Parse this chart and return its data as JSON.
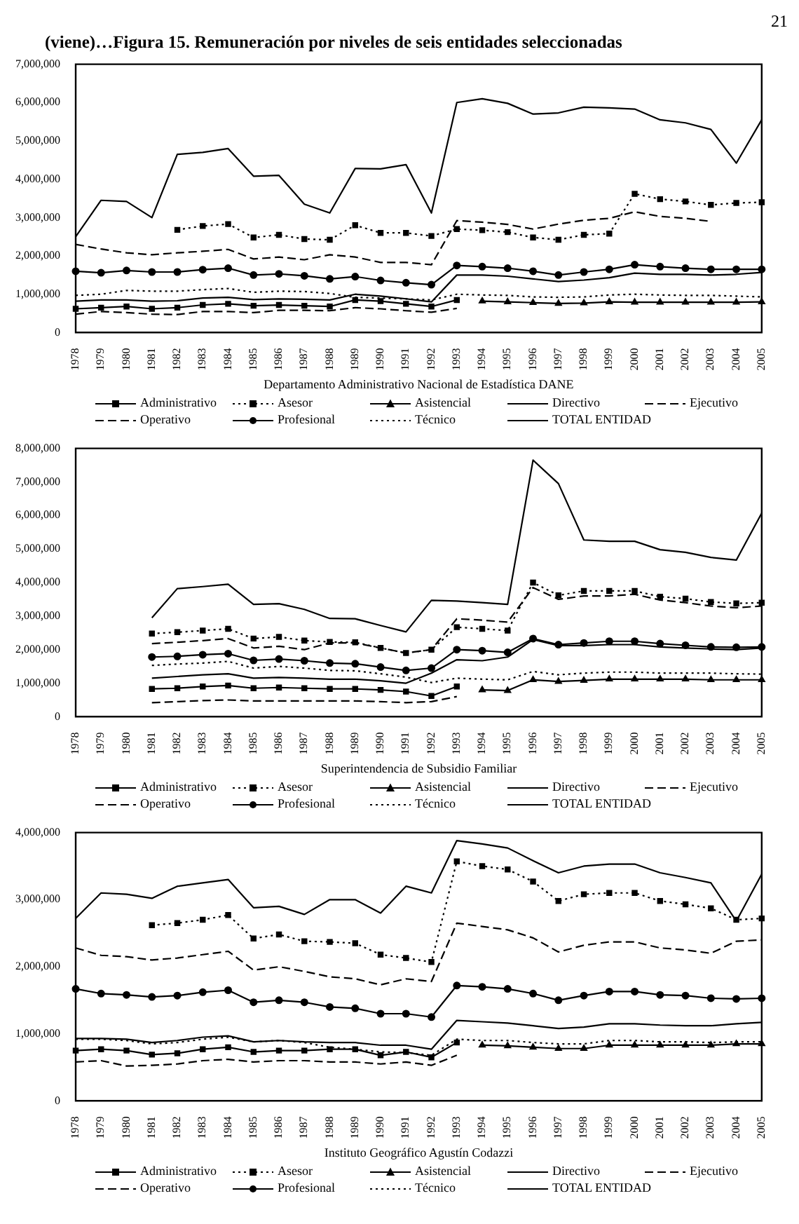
{
  "chart_data": [
    {
      "type": "line",
      "title": "(viene)…Figura 15. Remuneración por niveles de seis entidades seleccionadas",
      "annotations": [
        "21"
      ],
      "xlabel": "Departamento Administrativo Nacional de Estadística DANE",
      "legend": "bottom",
      "grid": false,
      "categories": [
        "1978",
        "1979",
        "1980",
        "1981",
        "1982",
        "1983",
        "1984",
        "1985",
        "1986",
        "1987",
        "1988",
        "1989",
        "1990",
        "1991",
        "1992",
        "1993",
        "1994",
        "1995",
        "1996",
        "1997",
        "1998",
        "1999",
        "2000",
        "2001",
        "2002",
        "2003",
        "2004",
        "2005"
      ],
      "ylim": [
        0,
        7000000
      ],
      "yticks": [
        {
          "value": 0,
          "label": "0"
        },
        {
          "value": 1000000,
          "label": "1,000,000"
        },
        {
          "value": 2000000,
          "label": "2,000,000"
        },
        {
          "value": 3000000,
          "label": "3,000,000"
        },
        {
          "value": 4000000,
          "label": "4,000,000"
        },
        {
          "value": 5000000,
          "label": "5,000,000"
        },
        {
          "value": 6000000,
          "label": "6,000,000"
        },
        {
          "value": 7000000,
          "label": "7,000,000"
        }
      ],
      "series": [
        {
          "name": "Administrativo",
          "color": "#000000",
          "line_style": "solid",
          "marker": "square",
          "values": [
            620000,
            650000,
            680000,
            620000,
            650000,
            720000,
            750000,
            700000,
            720000,
            700000,
            680000,
            850000,
            820000,
            750000,
            680000,
            850000,
            null,
            null,
            null,
            null,
            null,
            null,
            null,
            null,
            null,
            null,
            null,
            null
          ]
        },
        {
          "name": "Asesor",
          "color": "#000000",
          "line_style": "dotted",
          "marker": "square",
          "values": [
            null,
            null,
            null,
            null,
            2680000,
            2780000,
            2830000,
            2480000,
            2550000,
            2440000,
            2420000,
            2800000,
            2600000,
            2600000,
            2520000,
            2700000,
            2670000,
            2620000,
            2480000,
            2420000,
            2550000,
            2580000,
            3620000,
            3480000,
            3420000,
            3330000,
            3380000,
            3400000
          ]
        },
        {
          "name": "Asistencial",
          "color": "#000000",
          "line_style": "solid",
          "marker": "triangle",
          "values": [
            null,
            null,
            null,
            null,
            null,
            null,
            null,
            null,
            null,
            null,
            null,
            null,
            null,
            null,
            null,
            null,
            820000,
            800000,
            780000,
            760000,
            770000,
            800000,
            790000,
            790000,
            790000,
            790000,
            790000,
            800000
          ]
        },
        {
          "name": "Directivo",
          "color": "#000000",
          "line_style": "solid",
          "marker": "none",
          "values": [
            820000,
            850000,
            850000,
            820000,
            830000,
            900000,
            920000,
            860000,
            880000,
            870000,
            850000,
            1000000,
            950000,
            880000,
            800000,
            1500000,
            1500000,
            1470000,
            1400000,
            1330000,
            1370000,
            1430000,
            1550000,
            1520000,
            1520000,
            1500000,
            1520000,
            1570000
          ]
        },
        {
          "name": "Ejecutivo",
          "color": "#000000",
          "line_style": "dashed",
          "marker": "none",
          "values": [
            2300000,
            2180000,
            2080000,
            2030000,
            2080000,
            2120000,
            2170000,
            1920000,
            1970000,
            1900000,
            2030000,
            1970000,
            1830000,
            1830000,
            1770000,
            2920000,
            2880000,
            2820000,
            2700000,
            2830000,
            2930000,
            2980000,
            3150000,
            3030000,
            2980000,
            2900000,
            null,
            null
          ]
        },
        {
          "name": "Operativo",
          "color": "#000000",
          "line_style": "dashed",
          "marker": "none",
          "values": [
            480000,
            550000,
            520000,
            480000,
            470000,
            550000,
            550000,
            520000,
            580000,
            580000,
            570000,
            650000,
            620000,
            570000,
            530000,
            630000,
            null,
            null,
            null,
            null,
            null,
            null,
            null,
            null,
            null,
            null,
            null,
            null
          ]
        },
        {
          "name": "Profesional",
          "color": "#000000",
          "line_style": "solid",
          "marker": "circle",
          "values": [
            1600000,
            1560000,
            1620000,
            1580000,
            1580000,
            1640000,
            1680000,
            1500000,
            1530000,
            1480000,
            1400000,
            1460000,
            1360000,
            1300000,
            1250000,
            1750000,
            1720000,
            1680000,
            1600000,
            1500000,
            1580000,
            1650000,
            1770000,
            1720000,
            1680000,
            1650000,
            1650000,
            1650000
          ]
        },
        {
          "name": "Técnico",
          "color": "#000000",
          "line_style": "dotted",
          "marker": "none",
          "values": [
            970000,
            1000000,
            1100000,
            1080000,
            1080000,
            1120000,
            1150000,
            1050000,
            1080000,
            1070000,
            1020000,
            920000,
            900000,
            880000,
            850000,
            1000000,
            980000,
            970000,
            930000,
            920000,
            930000,
            980000,
            1000000,
            980000,
            970000,
            970000,
            950000,
            930000
          ]
        },
        {
          "name": "TOTAL ENTIDAD",
          "color": "#000000",
          "line_style": "solid",
          "marker": "none",
          "values": [
            2500000,
            3450000,
            3420000,
            3000000,
            4650000,
            4700000,
            4800000,
            4080000,
            4100000,
            3350000,
            3120000,
            4280000,
            4270000,
            4380000,
            3120000,
            6000000,
            6100000,
            5980000,
            5700000,
            5730000,
            5880000,
            5860000,
            5830000,
            5550000,
            5470000,
            5300000,
            4420000,
            5550000
          ]
        }
      ]
    },
    {
      "type": "line",
      "xlabel": "Superintendencia de Subsidio Familiar",
      "legend": "bottom",
      "grid": false,
      "categories": [
        "1978",
        "1979",
        "1980",
        "1981",
        "1982",
        "1983",
        "1984",
        "1985",
        "1986",
        "1987",
        "1988",
        "1989",
        "1990",
        "1991",
        "1992",
        "1993",
        "1994",
        "1995",
        "1996",
        "1997",
        "1998",
        "1999",
        "2000",
        "2001",
        "2002",
        "2003",
        "2004",
        "2005"
      ],
      "ylim": [
        0,
        8000000
      ],
      "yticks": [
        {
          "value": 0,
          "label": "0"
        },
        {
          "value": 1000000,
          "label": "1,000,000"
        },
        {
          "value": 2000000,
          "label": "2,000,000"
        },
        {
          "value": 3000000,
          "label": "3,000,000"
        },
        {
          "value": 4000000,
          "label": "4,000,000"
        },
        {
          "value": 5000000,
          "label": "5,000,000"
        },
        {
          "value": 6000000,
          "label": "6,000,000"
        },
        {
          "value": 7000000,
          "label": "7,000,000"
        },
        {
          "value": 8000000,
          "label": "8,000,000"
        }
      ],
      "series": [
        {
          "name": "Administrativo",
          "color": "#000000",
          "line_style": "solid",
          "marker": "square",
          "values": [
            null,
            null,
            null,
            830000,
            850000,
            900000,
            930000,
            850000,
            870000,
            850000,
            830000,
            830000,
            800000,
            750000,
            620000,
            900000,
            null,
            null,
            null,
            null,
            null,
            null,
            null,
            null,
            null,
            null,
            null,
            null
          ]
        },
        {
          "name": "Asesor",
          "color": "#000000",
          "line_style": "dotted",
          "marker": "square",
          "values": [
            null,
            null,
            null,
            2480000,
            2520000,
            2570000,
            2620000,
            2330000,
            2380000,
            2270000,
            2230000,
            2220000,
            2050000,
            1900000,
            2000000,
            2670000,
            2620000,
            2570000,
            4000000,
            3620000,
            3750000,
            3750000,
            3750000,
            3580000,
            3520000,
            3420000,
            3380000,
            3400000
          ]
        },
        {
          "name": "Asistencial",
          "color": "#000000",
          "line_style": "solid",
          "marker": "triangle",
          "values": [
            null,
            null,
            null,
            null,
            null,
            null,
            null,
            null,
            null,
            null,
            null,
            null,
            null,
            null,
            null,
            null,
            800000,
            780000,
            1100000,
            1050000,
            1080000,
            1120000,
            1120000,
            1120000,
            1120000,
            1100000,
            1100000,
            1100000
          ]
        },
        {
          "name": "Directivo",
          "color": "#000000",
          "line_style": "solid",
          "marker": "none",
          "values": [
            null,
            null,
            null,
            1150000,
            1200000,
            1250000,
            1280000,
            1150000,
            1170000,
            1150000,
            1120000,
            1120000,
            1070000,
            1000000,
            1300000,
            1700000,
            1670000,
            1780000,
            2300000,
            2120000,
            2120000,
            2150000,
            2150000,
            2080000,
            2050000,
            2020000,
            2000000,
            2050000
          ]
        },
        {
          "name": "Ejecutivo",
          "color": "#000000",
          "line_style": "dashed",
          "marker": "none",
          "values": [
            null,
            null,
            null,
            2180000,
            2220000,
            2270000,
            2330000,
            2050000,
            2100000,
            2000000,
            2200000,
            2200000,
            2050000,
            1900000,
            2000000,
            2920000,
            2880000,
            2820000,
            3850000,
            3500000,
            3600000,
            3600000,
            3650000,
            3480000,
            3400000,
            3300000,
            3250000,
            3300000
          ]
        },
        {
          "name": "Operativo",
          "color": "#000000",
          "line_style": "dashed",
          "marker": "none",
          "values": [
            null,
            null,
            null,
            420000,
            450000,
            480000,
            500000,
            470000,
            470000,
            470000,
            470000,
            470000,
            450000,
            420000,
            450000,
            600000,
            null,
            null,
            null,
            null,
            null,
            null,
            null,
            null,
            null,
            null,
            null,
            null
          ]
        },
        {
          "name": "Profesional",
          "color": "#000000",
          "line_style": "solid",
          "marker": "circle",
          "values": [
            null,
            null,
            null,
            1780000,
            1800000,
            1850000,
            1880000,
            1680000,
            1720000,
            1670000,
            1600000,
            1580000,
            1480000,
            1380000,
            1450000,
            2000000,
            1970000,
            1920000,
            2330000,
            2150000,
            2200000,
            2250000,
            2250000,
            2180000,
            2130000,
            2080000,
            2070000,
            2080000
          ]
        },
        {
          "name": "Técnico",
          "color": "#000000",
          "line_style": "dotted",
          "marker": "none",
          "values": [
            null,
            null,
            null,
            1530000,
            1570000,
            1600000,
            1650000,
            1450000,
            1500000,
            1450000,
            1380000,
            1370000,
            1280000,
            1180000,
            1020000,
            1150000,
            1120000,
            1100000,
            1350000,
            1250000,
            1300000,
            1330000,
            1330000,
            1300000,
            1300000,
            1300000,
            1280000,
            1270000
          ]
        },
        {
          "name": "TOTAL ENTIDAD",
          "color": "#000000",
          "line_style": "solid",
          "marker": "none",
          "values": [
            null,
            null,
            null,
            2950000,
            3820000,
            3880000,
            3950000,
            3350000,
            3370000,
            3200000,
            2930000,
            2920000,
            2720000,
            2530000,
            3470000,
            3450000,
            3400000,
            3350000,
            7650000,
            6950000,
            5270000,
            5230000,
            5230000,
            4980000,
            4900000,
            4750000,
            4670000,
            6070000
          ]
        }
      ]
    },
    {
      "type": "line",
      "xlabel": "Instituto Geográfico Agustín Codazzi",
      "legend": "bottom",
      "grid": false,
      "categories": [
        "1978",
        "1979",
        "1980",
        "1981",
        "1982",
        "1983",
        "1984",
        "1985",
        "1986",
        "1987",
        "1988",
        "1989",
        "1990",
        "1991",
        "1992",
        "1993",
        "1994",
        "1995",
        "1996",
        "1997",
        "1998",
        "1999",
        "2000",
        "2001",
        "2002",
        "2003",
        "2004",
        "2005"
      ],
      "ylim": [
        0,
        4000000
      ],
      "yticks": [
        {
          "value": 0,
          "label": "0"
        },
        {
          "value": 1000000,
          "label": "1,000,000"
        },
        {
          "value": 2000000,
          "label": "2,000,000"
        },
        {
          "value": 3000000,
          "label": "3,000,000"
        },
        {
          "value": 4000000,
          "label": "4,000,000"
        }
      ],
      "series": [
        {
          "name": "Administrativo",
          "color": "#000000",
          "line_style": "solid",
          "marker": "square",
          "values": [
            750000,
            770000,
            750000,
            690000,
            710000,
            770000,
            800000,
            730000,
            750000,
            750000,
            770000,
            770000,
            680000,
            730000,
            650000,
            870000,
            null,
            null,
            null,
            null,
            null,
            null,
            null,
            null,
            null,
            null,
            null,
            null
          ]
        },
        {
          "name": "Asesor",
          "color": "#000000",
          "line_style": "dotted",
          "marker": "square",
          "values": [
            null,
            null,
            null,
            2620000,
            2650000,
            2700000,
            2770000,
            2420000,
            2480000,
            2380000,
            2370000,
            2350000,
            2180000,
            2130000,
            2070000,
            3570000,
            3500000,
            3450000,
            3270000,
            2980000,
            3080000,
            3100000,
            3100000,
            2980000,
            2930000,
            2870000,
            2700000,
            2720000
          ]
        },
        {
          "name": "Asistencial",
          "color": "#000000",
          "line_style": "solid",
          "marker": "triangle",
          "values": [
            null,
            null,
            null,
            null,
            null,
            null,
            null,
            null,
            null,
            null,
            null,
            null,
            null,
            null,
            null,
            null,
            830000,
            820000,
            800000,
            780000,
            780000,
            830000,
            830000,
            830000,
            830000,
            830000,
            850000,
            850000
          ]
        },
        {
          "name": "Directivo",
          "color": "#000000",
          "line_style": "solid",
          "marker": "none",
          "values": [
            930000,
            930000,
            920000,
            870000,
            900000,
            950000,
            970000,
            880000,
            900000,
            880000,
            870000,
            870000,
            830000,
            830000,
            770000,
            1200000,
            1180000,
            1160000,
            1120000,
            1080000,
            1100000,
            1150000,
            1150000,
            1130000,
            1120000,
            1120000,
            1150000,
            1170000
          ]
        },
        {
          "name": "Ejecutivo",
          "color": "#000000",
          "line_style": "dashed",
          "marker": "none",
          "values": [
            2280000,
            2170000,
            2150000,
            2100000,
            2130000,
            2180000,
            2230000,
            1950000,
            2000000,
            1930000,
            1850000,
            1820000,
            1730000,
            1820000,
            1780000,
            2650000,
            2600000,
            2550000,
            2430000,
            2220000,
            2320000,
            2370000,
            2370000,
            2280000,
            2250000,
            2200000,
            2380000,
            2400000
          ]
        },
        {
          "name": "Operativo",
          "color": "#000000",
          "line_style": "dashed",
          "marker": "none",
          "values": [
            580000,
            600000,
            520000,
            530000,
            550000,
            600000,
            620000,
            580000,
            600000,
            600000,
            580000,
            580000,
            550000,
            580000,
            530000,
            680000,
            null,
            null,
            null,
            null,
            null,
            null,
            null,
            null,
            null,
            null,
            null,
            null
          ]
        },
        {
          "name": "Profesional",
          "color": "#000000",
          "line_style": "solid",
          "marker": "circle",
          "values": [
            1670000,
            1600000,
            1580000,
            1550000,
            1570000,
            1620000,
            1650000,
            1470000,
            1500000,
            1470000,
            1400000,
            1380000,
            1300000,
            1300000,
            1250000,
            1720000,
            1700000,
            1670000,
            1600000,
            1500000,
            1570000,
            1630000,
            1630000,
            1580000,
            1570000,
            1530000,
            1520000,
            1530000
          ]
        },
        {
          "name": "Técnico",
          "color": "#000000",
          "line_style": "dotted",
          "marker": "none",
          "values": [
            920000,
            920000,
            900000,
            850000,
            870000,
            920000,
            950000,
            880000,
            900000,
            870000,
            800000,
            770000,
            730000,
            720000,
            680000,
            920000,
            900000,
            900000,
            870000,
            850000,
            850000,
            900000,
            900000,
            880000,
            880000,
            870000,
            880000,
            880000
          ]
        },
        {
          "name": "TOTAL ENTIDAD",
          "color": "#000000",
          "line_style": "solid",
          "marker": "none",
          "values": [
            2720000,
            3100000,
            3080000,
            3020000,
            3200000,
            3250000,
            3300000,
            2880000,
            2900000,
            2780000,
            3000000,
            3000000,
            2800000,
            3200000,
            3100000,
            3880000,
            3830000,
            3770000,
            3580000,
            3400000,
            3500000,
            3530000,
            3530000,
            3400000,
            3330000,
            3250000,
            2680000,
            3380000
          ]
        }
      ]
    }
  ]
}
